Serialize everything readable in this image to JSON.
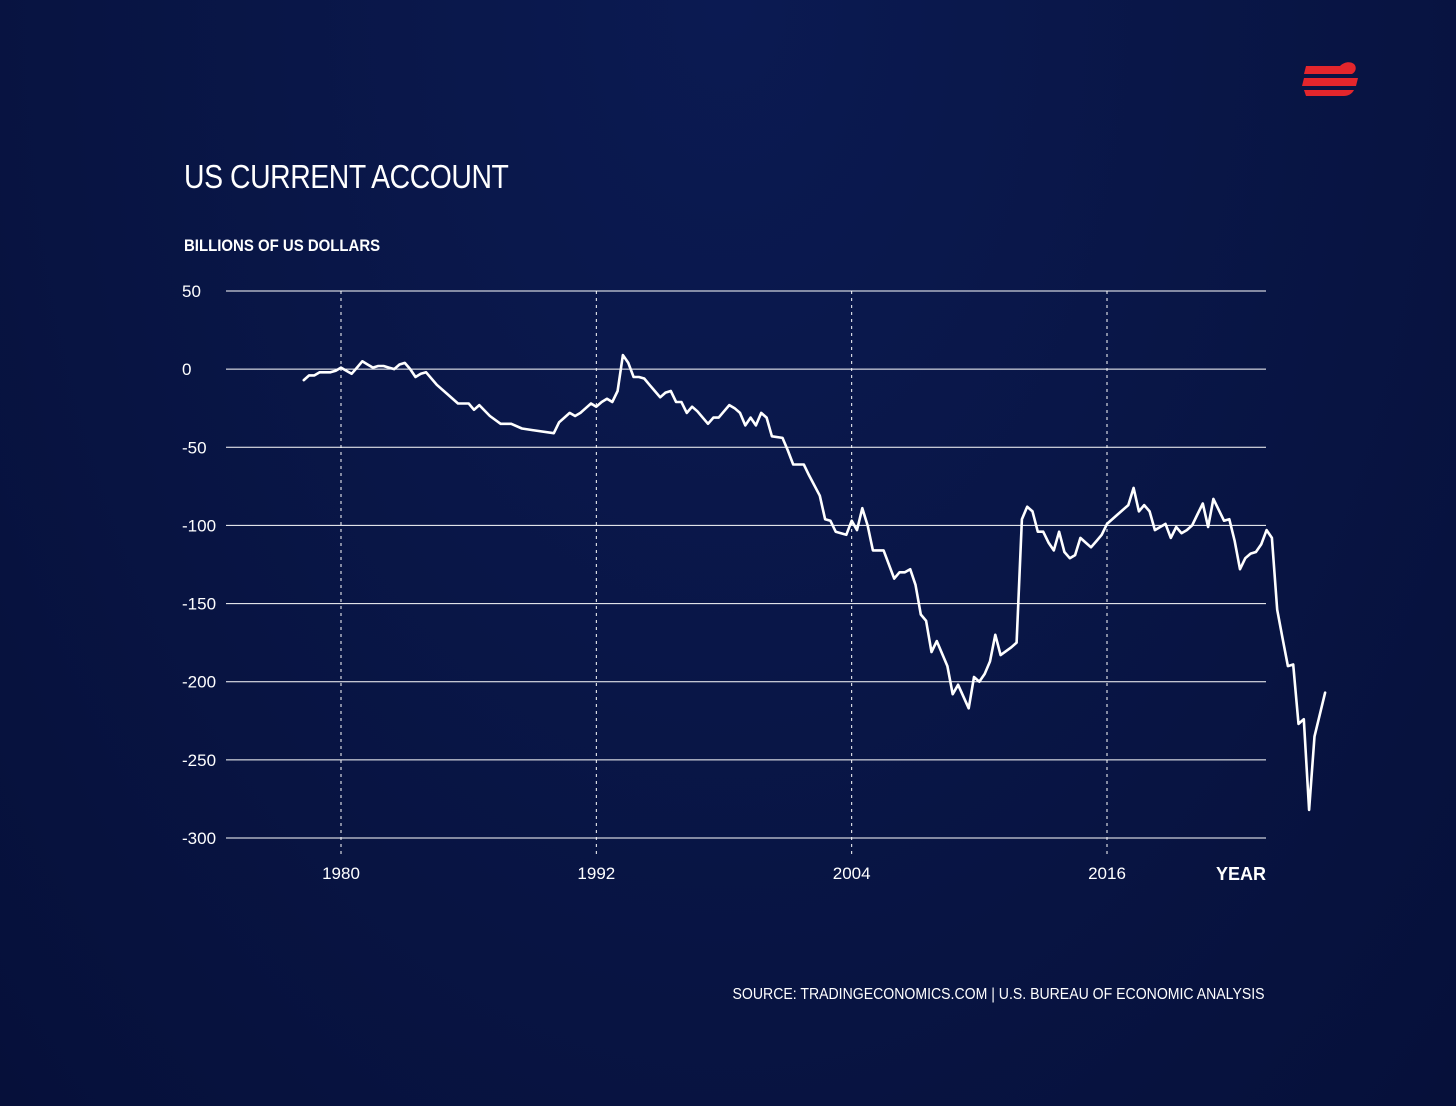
{
  "header": {
    "title": "US CURRENT ACCOUNT",
    "ylabel": "BILLIONS OF US DOLLARS"
  },
  "footer": {
    "source": "SOURCE: TRADINGECONOMICS.COM | U.S. BUREAU OF ECONOMIC ANALYSIS"
  },
  "logo": {
    "icon": "brand-logo-icon",
    "color": "#e3262c"
  },
  "colors": {
    "background": "#091647",
    "line": "#ffffff",
    "grid": "#ffffff",
    "accent": "#e3262c"
  },
  "chart_data": {
    "type": "line",
    "title": "US CURRENT ACCOUNT",
    "ylabel": "BILLIONS OF US DOLLARS",
    "xlabel": "YEAR",
    "xlim": [
      1974.5,
      2024.5
    ],
    "ylim": [
      -300,
      50
    ],
    "yticks": [
      50,
      0,
      -50,
      -100,
      -150,
      -200,
      -250,
      -300
    ],
    "xticks": [
      1980,
      1992,
      2004,
      2016
    ],
    "grid": {
      "horizontal": "solid",
      "vertical": "dotted"
    },
    "series": [
      {
        "values": [
          [
            1978.25,
            -7
          ],
          [
            1978.5,
            -4
          ],
          [
            1978.75,
            -4
          ],
          [
            1979.0,
            -2
          ],
          [
            1979.25,
            -2
          ],
          [
            1979.5,
            -2
          ],
          [
            1979.75,
            -1
          ],
          [
            1980.0,
            1
          ],
          [
            1980.25,
            -1
          ],
          [
            1980.5,
            -3
          ],
          [
            1980.75,
            1
          ],
          [
            1981.0,
            5
          ],
          [
            1981.25,
            3
          ],
          [
            1981.5,
            1
          ],
          [
            1981.75,
            2
          ],
          [
            1982.0,
            2
          ],
          [
            1982.25,
            1
          ],
          [
            1982.5,
            0
          ],
          [
            1982.75,
            3
          ],
          [
            1983.0,
            4
          ],
          [
            1983.25,
            0
          ],
          [
            1983.5,
            -5
          ],
          [
            1983.75,
            -3
          ],
          [
            1984.0,
            -2
          ],
          [
            1984.5,
            -10
          ],
          [
            1985.0,
            -16
          ],
          [
            1985.5,
            -22
          ],
          [
            1986.0,
            -22
          ],
          [
            1986.25,
            -26
          ],
          [
            1986.5,
            -23
          ],
          [
            1987.0,
            -30
          ],
          [
            1987.5,
            -35
          ],
          [
            1988.0,
            -35
          ],
          [
            1988.5,
            -38
          ],
          [
            1989.0,
            -39
          ],
          [
            1990.0,
            -41
          ],
          [
            1990.25,
            -34
          ],
          [
            1990.5,
            -31
          ],
          [
            1990.75,
            -28
          ],
          [
            1991.0,
            -30
          ],
          [
            1991.25,
            -28
          ],
          [
            1991.5,
            -25
          ],
          [
            1991.75,
            -22
          ],
          [
            1992.0,
            -24
          ],
          [
            1992.25,
            -21
          ],
          [
            1992.5,
            -19
          ],
          [
            1992.75,
            -21
          ],
          [
            1993.0,
            -14
          ],
          [
            1993.25,
            9
          ],
          [
            1993.5,
            4
          ],
          [
            1993.75,
            -5
          ],
          [
            1994.0,
            -5
          ],
          [
            1994.25,
            -6
          ],
          [
            1994.5,
            -10
          ],
          [
            1994.75,
            -14
          ],
          [
            1995.0,
            -18
          ],
          [
            1995.25,
            -15
          ],
          [
            1995.5,
            -14
          ],
          [
            1995.75,
            -21
          ],
          [
            1996.0,
            -21
          ],
          [
            1996.25,
            -28
          ],
          [
            1996.5,
            -24
          ],
          [
            1996.75,
            -27
          ],
          [
            1997.0,
            -31
          ],
          [
            1997.25,
            -35
          ],
          [
            1997.5,
            -31
          ],
          [
            1997.75,
            -31
          ],
          [
            1998.0,
            -27
          ],
          [
            1998.25,
            -23
          ],
          [
            1998.5,
            -25
          ],
          [
            1998.75,
            -28
          ],
          [
            1999.0,
            -36
          ],
          [
            1999.25,
            -31
          ],
          [
            1999.5,
            -36
          ],
          [
            1999.75,
            -28
          ],
          [
            2000.0,
            -31
          ],
          [
            2000.25,
            -43
          ],
          [
            2000.75,
            -44
          ],
          [
            2001.0,
            -52
          ],
          [
            2001.25,
            -61
          ],
          [
            2001.75,
            -61
          ],
          [
            2002.0,
            -68
          ],
          [
            2002.5,
            -81
          ],
          [
            2002.75,
            -96
          ],
          [
            2003.0,
            -97
          ],
          [
            2003.25,
            -104
          ],
          [
            2003.75,
            -106
          ],
          [
            2004.0,
            -97
          ],
          [
            2004.25,
            -103
          ],
          [
            2004.5,
            -89
          ],
          [
            2004.75,
            -100
          ],
          [
            2005.0,
            -116
          ],
          [
            2005.5,
            -116
          ],
          [
            2006.0,
            -134
          ],
          [
            2006.25,
            -130
          ],
          [
            2006.5,
            -130
          ],
          [
            2006.75,
            -128
          ],
          [
            2007.0,
            -138
          ],
          [
            2007.25,
            -157
          ],
          [
            2007.5,
            -161
          ],
          [
            2007.75,
            -181
          ],
          [
            2008.0,
            -174
          ],
          [
            2008.25,
            -182
          ],
          [
            2008.5,
            -190
          ],
          [
            2008.75,
            -208
          ],
          [
            2009.0,
            -202
          ],
          [
            2009.5,
            -217
          ],
          [
            2009.75,
            -197
          ],
          [
            2010.0,
            -200
          ],
          [
            2010.25,
            -195
          ],
          [
            2010.5,
            -187
          ],
          [
            2010.75,
            -170
          ],
          [
            2011.0,
            -183
          ],
          [
            2011.5,
            -178
          ],
          [
            2011.75,
            -175
          ],
          [
            2012.0,
            -96
          ],
          [
            2012.25,
            -88
          ],
          [
            2012.5,
            -91
          ],
          [
            2012.75,
            -104
          ],
          [
            2013.0,
            -104
          ],
          [
            2013.25,
            -111
          ],
          [
            2013.5,
            -116
          ],
          [
            2013.75,
            -104
          ],
          [
            2014.0,
            -117
          ],
          [
            2014.25,
            -121
          ],
          [
            2014.5,
            -119
          ],
          [
            2014.75,
            -108
          ],
          [
            2015.0,
            -111
          ],
          [
            2015.25,
            -114
          ],
          [
            2015.5,
            -110
          ],
          [
            2015.75,
            -106
          ],
          [
            2016.0,
            -99
          ],
          [
            2016.5,
            -93
          ],
          [
            2017.0,
            -87
          ],
          [
            2017.25,
            -76
          ],
          [
            2017.5,
            -91
          ],
          [
            2017.75,
            -87
          ],
          [
            2018.0,
            -91
          ],
          [
            2018.25,
            -103
          ],
          [
            2018.5,
            -101
          ],
          [
            2018.75,
            -99
          ],
          [
            2019.0,
            -108
          ],
          [
            2019.25,
            -101
          ],
          [
            2019.5,
            -105
          ],
          [
            2019.75,
            -103
          ],
          [
            2020.0,
            -100
          ],
          [
            2020.25,
            -93
          ],
          [
            2020.5,
            -86
          ],
          [
            2020.75,
            -101
          ],
          [
            2021.0,
            -83
          ],
          [
            2021.25,
            -90
          ],
          [
            2021.5,
            -97
          ],
          [
            2021.75,
            -96
          ],
          [
            2022.0,
            -110
          ],
          [
            2022.25,
            -128
          ],
          [
            2022.5,
            -121
          ],
          [
            2022.75,
            -118
          ],
          [
            2023.0,
            -117
          ],
          [
            2023.25,
            -112
          ],
          [
            2023.5,
            -103
          ],
          [
            2023.75,
            -108
          ],
          [
            2024.0,
            -154
          ],
          [
            2024.25,
            -172
          ],
          [
            2024.5,
            -190
          ],
          [
            2024.75,
            -189
          ],
          [
            2025.0,
            -227
          ],
          [
            2025.25,
            -224
          ],
          [
            2025.5,
            -282
          ],
          [
            2025.75,
            -235
          ],
          [
            2026.25,
            -207
          ]
        ]
      }
    ]
  }
}
